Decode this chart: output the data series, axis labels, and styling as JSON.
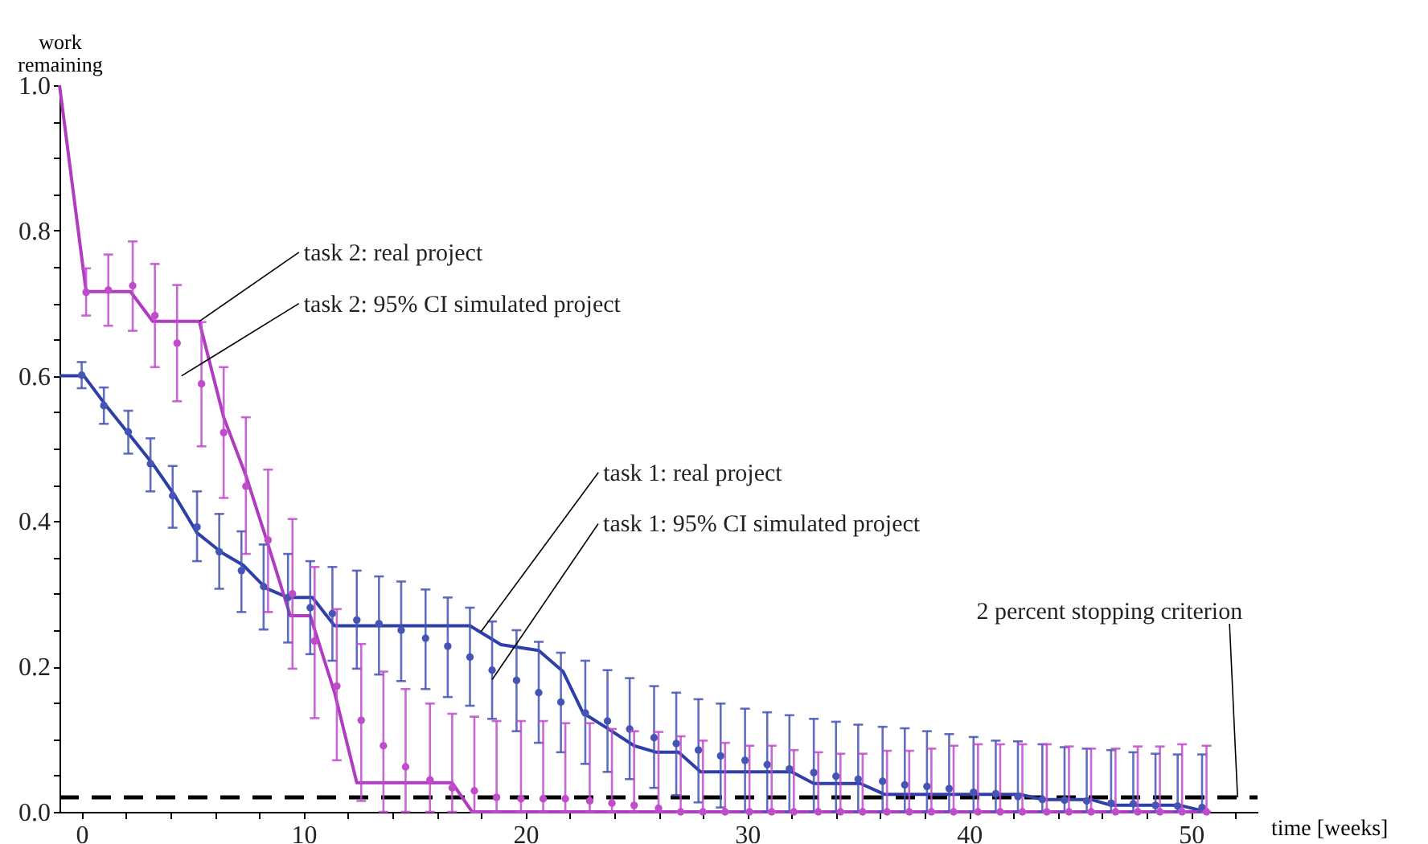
{
  "chart_data": {
    "type": "line",
    "xlabel": "time [weeks]",
    "ylabel": "work remaining",
    "xlim": [
      -1,
      53
    ],
    "ylim": [
      0,
      1
    ],
    "xticks": [
      0,
      {
        "value": 2,
        "label": null
      },
      {
        "value": 4,
        "label": null
      },
      {
        "value": 6,
        "label": null
      },
      {
        "value": 8,
        "label": null
      },
      10,
      {
        "value": 12,
        "label": null
      },
      {
        "value": 14,
        "label": null
      },
      {
        "value": 16,
        "label": null
      },
      {
        "value": 18,
        "label": null
      },
      20,
      {
        "value": 22,
        "label": null
      },
      {
        "value": 24,
        "label": null
      },
      {
        "value": 26,
        "label": null
      },
      {
        "value": 28,
        "label": null
      },
      30,
      {
        "value": 32,
        "label": null
      },
      {
        "value": 34,
        "label": null
      },
      {
        "value": 36,
        "label": null
      },
      {
        "value": 38,
        "label": null
      },
      40,
      {
        "value": 42,
        "label": null
      },
      {
        "value": 44,
        "label": null
      },
      {
        "value": 46,
        "label": null
      },
      {
        "value": 48,
        "label": null
      },
      50,
      {
        "value": 52,
        "label": null
      }
    ],
    "yticks": [
      {
        "value": 0,
        "label": "0.0"
      },
      {
        "value": 0.05,
        "label": null
      },
      {
        "value": 0.1,
        "label": null
      },
      {
        "value": 0.15,
        "label": null
      },
      {
        "value": 0.2,
        "label": "0.2"
      },
      {
        "value": 0.25,
        "label": null
      },
      {
        "value": 0.3,
        "label": null
      },
      {
        "value": 0.35,
        "label": null
      },
      {
        "value": 0.4,
        "label": "0.4"
      },
      {
        "value": 0.45,
        "label": null
      },
      {
        "value": 0.5,
        "label": null
      },
      {
        "value": 0.55,
        "label": null
      },
      {
        "value": 0.6,
        "label": "0.6"
      },
      {
        "value": 0.65,
        "label": null
      },
      {
        "value": 0.7,
        "label": null
      },
      {
        "value": 0.75,
        "label": null
      },
      {
        "value": 0.8,
        "label": "0.8"
      },
      {
        "value": 0.85,
        "label": null
      },
      {
        "value": 0.9,
        "label": null
      },
      {
        "value": 0.95,
        "label": null
      },
      {
        "value": 1,
        "label": "1.0"
      }
    ],
    "grid": false,
    "series": [
      {
        "line_style": "solid",
        "color": "#2f3fa8",
        "x": [
          -1,
          0.1,
          1.1,
          2.1,
          3.2,
          4.2,
          5.2,
          6.3,
          7.3,
          8.3,
          9.3,
          10.4,
          11.4,
          17.5,
          18.9,
          20.6,
          21.7,
          22.6,
          23.8,
          24.9,
          25.9,
          26.9,
          27.9,
          32.0,
          33.0,
          35.1,
          36.2,
          42.3,
          43.3,
          45.5,
          46.4,
          49.5,
          50.7
        ],
        "values": [
          0.6,
          0.6,
          0.559,
          0.521,
          0.479,
          0.435,
          0.384,
          0.357,
          0.339,
          0.308,
          0.295,
          0.295,
          0.256,
          0.256,
          0.23,
          0.222,
          0.193,
          0.136,
          0.113,
          0.091,
          0.082,
          0.082,
          0.055,
          0.055,
          0.039,
          0.039,
          0.024,
          0.024,
          0.017,
          0.017,
          0.009,
          0.009,
          0
        ]
      },
      {
        "line_style": "solid",
        "color": "#b03cc0",
        "x": [
          -1,
          0.2,
          2.2,
          3.2,
          5.3,
          6.4,
          7.4,
          8.4,
          9.4,
          10.3,
          11.4,
          12.4,
          16.7,
          17.6,
          50.7
        ],
        "values": [
          1,
          0.716,
          0.716,
          0.675,
          0.675,
          0.543,
          0.463,
          0.368,
          0.27,
          0.27,
          0.164,
          0.04,
          0.04,
          0,
          0
        ]
      },
      {
        "type": "scatter",
        "marker": "circle",
        "color": "#4555b5",
        "x": [
          0,
          1.0,
          2.1,
          3.1,
          4.1,
          5.2,
          6.2,
          7.2,
          8.2,
          9.3,
          10.3,
          11.3,
          12.4,
          13.4,
          14.4,
          15.5,
          16.5,
          17.5,
          18.5,
          19.6,
          20.6,
          21.6,
          22.7,
          23.7,
          24.7,
          25.8,
          26.8,
          27.8,
          28.8,
          29.9,
          30.9,
          31.9,
          33.0,
          34.0,
          35.0,
          36.1,
          37.1,
          38.1,
          39.1,
          40.2,
          41.2,
          42.2,
          43.3,
          44.3,
          45.3,
          46.4,
          47.4,
          48.4,
          49.4,
          50.5
        ],
        "values": [
          0.601,
          0.559,
          0.523,
          0.479,
          0.435,
          0.392,
          0.358,
          0.332,
          0.31,
          0.295,
          0.281,
          0.273,
          0.264,
          0.259,
          0.25,
          0.239,
          0.228,
          0.213,
          0.195,
          0.181,
          0.164,
          0.151,
          0.136,
          0.125,
          0.114,
          0.102,
          0.094,
          0.085,
          0.077,
          0.071,
          0.065,
          0.059,
          0.054,
          0.049,
          0.045,
          0.042,
          0.037,
          0.035,
          0.032,
          0.027,
          0.025,
          0.021,
          0.017,
          0.016,
          0.015,
          0.012,
          0.011,
          0.009,
          0.008,
          0.006
        ],
        "errors": [
          [
            0.583,
            0.619
          ],
          [
            0.534,
            0.584
          ],
          [
            0.493,
            0.552
          ],
          [
            0.441,
            0.514
          ],
          [
            0.391,
            0.476
          ],
          [
            0.345,
            0.441
          ],
          [
            0.307,
            0.41
          ],
          [
            0.275,
            0.386
          ],
          [
            0.251,
            0.368
          ],
          [
            0.233,
            0.355
          ],
          [
            0.217,
            0.345
          ],
          [
            0.208,
            0.337
          ],
          [
            0.197,
            0.332
          ],
          [
            0.189,
            0.324
          ],
          [
            0.18,
            0.317
          ],
          [
            0.169,
            0.306
          ],
          [
            0.158,
            0.295
          ],
          [
            0.146,
            0.281
          ],
          [
            0.128,
            0.262
          ],
          [
            0.111,
            0.25
          ],
          [
            0.095,
            0.234
          ],
          [
            0.082,
            0.219
          ],
          [
            0.066,
            0.208
          ],
          [
            0.055,
            0.195
          ],
          [
            0.045,
            0.184
          ],
          [
            0.033,
            0.173
          ],
          [
            0.023,
            0.164
          ],
          [
            0.013,
            0.155
          ],
          [
            0.006,
            0.149
          ],
          [
            0,
            0.142
          ],
          [
            0,
            0.137
          ],
          [
            0,
            0.133
          ],
          [
            0,
            0.128
          ],
          [
            0,
            0.124
          ],
          [
            0,
            0.12
          ],
          [
            0,
            0.117
          ],
          [
            0,
            0.115
          ],
          [
            0,
            0.111
          ],
          [
            0,
            0.107
          ],
          [
            0,
            0.103
          ],
          [
            0,
            0.098
          ],
          [
            0,
            0.097
          ],
          [
            0,
            0.093
          ],
          [
            0,
            0.089
          ],
          [
            0,
            0.087
          ],
          [
            0,
            0.085
          ],
          [
            0,
            0.082
          ],
          [
            0,
            0.08
          ],
          [
            0,
            0.079
          ],
          [
            0,
            0.079
          ]
        ]
      },
      {
        "type": "scatter",
        "marker": "circle",
        "color": "#c04ccc",
        "x": [
          0.2,
          1.2,
          2.3,
          3.3,
          4.3,
          5.4,
          6.4,
          7.4,
          8.4,
          9.5,
          10.5,
          11.5,
          12.6,
          13.6,
          14.6,
          15.7,
          16.7,
          17.7,
          18.7,
          19.8,
          20.8,
          21.8,
          22.9,
          23.9,
          24.9,
          26.0,
          27.0,
          28.0,
          29.0,
          30.1,
          31.1,
          32.1,
          33.2,
          34.2,
          35.2,
          36.3,
          37.3,
          38.3,
          39.3,
          40.4,
          41.4,
          42.4,
          43.5,
          44.5,
          45.5,
          46.6,
          47.6,
          48.6,
          49.6,
          50.7
        ],
        "values": [
          0.715,
          0.718,
          0.724,
          0.683,
          0.645,
          0.589,
          0.522,
          0.448,
          0.374,
          0.3,
          0.235,
          0.173,
          0.126,
          0.091,
          0.062,
          0.044,
          0.033,
          0.029,
          0.02,
          0.018,
          0.018,
          0.018,
          0.015,
          0.012,
          0.009,
          0.005,
          0,
          0,
          0,
          0,
          0,
          0,
          0,
          0,
          0,
          0,
          0,
          0,
          0,
          0,
          0,
          0,
          0,
          0,
          0,
          0,
          0,
          0,
          0,
          0
        ],
        "errors": [
          [
            0.683,
            0.748
          ],
          [
            0.669,
            0.767
          ],
          [
            0.662,
            0.785
          ],
          [
            0.612,
            0.754
          ],
          [
            0.565,
            0.725
          ],
          [
            0.503,
            0.674
          ],
          [
            0.432,
            0.612
          ],
          [
            0.355,
            0.543
          ],
          [
            0.275,
            0.471
          ],
          [
            0.197,
            0.403
          ],
          [
            0.129,
            0.337
          ],
          [
            0.071,
            0.279
          ],
          [
            0.015,
            0.231
          ],
          [
            0,
            0.193
          ],
          [
            0,
            0.169
          ],
          [
            0,
            0.149
          ],
          [
            0,
            0.135
          ],
          [
            0,
            0.131
          ],
          [
            0,
            0.125
          ],
          [
            0,
            0.125
          ],
          [
            0,
            0.125
          ],
          [
            0,
            0.122
          ],
          [
            0,
            0.122
          ],
          [
            0,
            0.114
          ],
          [
            0,
            0.111
          ],
          [
            0,
            0.11
          ],
          [
            0,
            0.104
          ],
          [
            0,
            0.098
          ],
          [
            0,
            0.095
          ],
          [
            0,
            0.091
          ],
          [
            0,
            0.091
          ],
          [
            0,
            0.085
          ],
          [
            0,
            0.082
          ],
          [
            0,
            0.08
          ],
          [
            0,
            0.08
          ],
          [
            0,
            0.084
          ],
          [
            0,
            0.084
          ],
          [
            0,
            0.087
          ],
          [
            0,
            0.091
          ],
          [
            0,
            0.093
          ],
          [
            0,
            0.093
          ],
          [
            0,
            0.093
          ],
          [
            0,
            0.093
          ],
          [
            0,
            0.09
          ],
          [
            0,
            0.087
          ],
          [
            0,
            0.087
          ],
          [
            0,
            0.09
          ],
          [
            0,
            0.09
          ],
          [
            0,
            0.093
          ],
          [
            0,
            0.091
          ]
        ]
      }
    ],
    "ref_lines": [
      {
        "axis": "y",
        "value": 0.02,
        "color": "#000000",
        "line_style": "dashed"
      }
    ],
    "annotations": [
      {
        "text": "task 2: real project",
        "x": 5.3,
        "y": 0.675
      },
      {
        "text": "task 2: 95% CI simulated project",
        "x": 4.5,
        "y": 0.6
      },
      {
        "text": "task 1: real project",
        "x": 18.0,
        "y": 0.248
      },
      {
        "text": "task 1: 95% CI simulated project",
        "x": 18.5,
        "y": 0.182
      },
      {
        "text": "2 percent stopping criterion",
        "x": 52.1,
        "y": 0.02
      }
    ]
  }
}
